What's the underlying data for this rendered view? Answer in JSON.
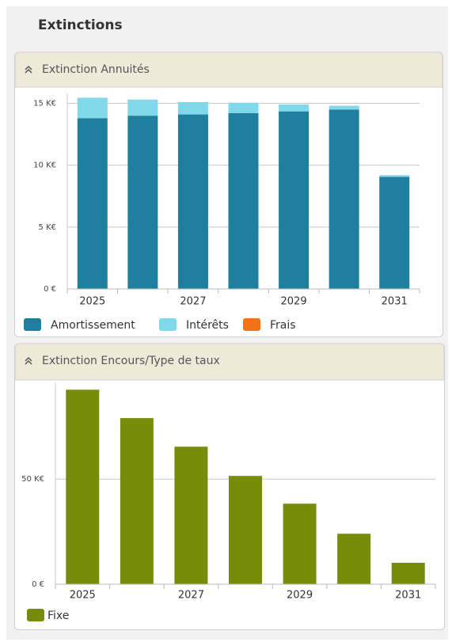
{
  "title": "Extinctions",
  "chart_data": [
    {
      "type": "bar",
      "stacked": true,
      "title": "Extinction Annuités",
      "categories": [
        "2025",
        null,
        "2027",
        null,
        "2029",
        null,
        "2031"
      ],
      "series": [
        {
          "name": "Amortissement",
          "color": "#1e7f9e",
          "values": [
            13.8,
            14.0,
            14.1,
            14.2,
            14.35,
            14.5,
            9.06
          ]
        },
        {
          "name": "Intérêts",
          "color": "#80d8ea",
          "values": [
            1.65,
            1.3,
            1.0,
            0.85,
            0.55,
            0.3,
            0.13
          ]
        },
        {
          "name": "Frais",
          "color": "#f47214",
          "values": [
            0,
            0,
            0,
            0,
            0,
            0,
            0
          ]
        }
      ],
      "ylim": [
        0,
        15.8
      ],
      "yticks": [
        {
          "value": 0,
          "label": "0 €"
        },
        {
          "value": 5,
          "label": "5 K€"
        },
        {
          "value": 10,
          "label": "10 K€"
        },
        {
          "value": 15,
          "label": "15 K€"
        }
      ],
      "grid": true
    },
    {
      "type": "bar",
      "stacked": false,
      "title": "Extinction Encours/Type de taux",
      "categories": [
        "2025",
        null,
        "2027",
        null,
        "2029",
        null,
        "2031"
      ],
      "series": [
        {
          "name": "Fixe",
          "color": "#788c0b",
          "values": [
            92.5,
            79,
            65.4,
            51.5,
            38.3,
            24,
            10.2
          ]
        }
      ],
      "ylim": [
        0,
        96
      ],
      "yticks": [
        {
          "value": 0,
          "label": "0 €"
        },
        {
          "value": 50,
          "label": "50 K€"
        }
      ],
      "grid": true
    }
  ]
}
